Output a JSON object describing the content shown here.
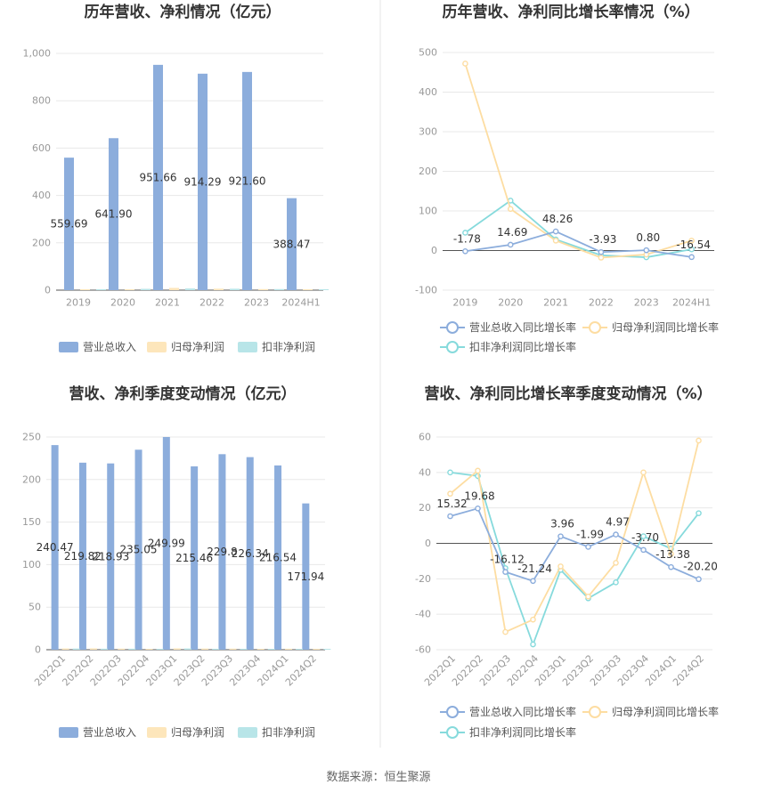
{
  "colors": {
    "series1": "#8CADDC",
    "series2": "#FDE6BB",
    "series3": "#B8E5E8",
    "line1": "#8CADDC",
    "line2": "#FDDDA2",
    "line3": "#86DADC",
    "axis": "#999999",
    "grid": "#E8E8E8",
    "title": "#333333",
    "label": "#333333",
    "divider": "#E5E5E5"
  },
  "source": "数据来源：恒生聚源",
  "chart_data": [
    {
      "id": "annual-revenue",
      "type": "bar",
      "title": "历年营收、净利情况（亿元）",
      "categories": [
        "2019",
        "2020",
        "2021",
        "2022",
        "2023",
        "2024H1"
      ],
      "ylim": [
        0,
        1000
      ],
      "yticks": [
        0,
        200,
        400,
        600,
        800,
        1000
      ],
      "ytick_labels": [
        "0",
        "200",
        "400",
        "600",
        "800",
        "1,000"
      ],
      "grid": true,
      "legend": "bottom",
      "series": [
        {
          "name": "营业总收入",
          "values": [
            559.69,
            641.9,
            951.66,
            914.29,
            921.6,
            388.47
          ],
          "labels": [
            "559.69",
            "641.90",
            "951.66",
            "914.29",
            "921.60",
            "388.47"
          ]
        },
        {
          "name": "归母净利润",
          "values": [
            2.2,
            3.4,
            9.5,
            6.1,
            4.5,
            2.2
          ],
          "labels": []
        },
        {
          "name": "扣非净利润",
          "values": [
            2.4,
            5.5,
            7.0,
            6.0,
            4.6,
            2.1
          ],
          "labels": []
        }
      ]
    },
    {
      "id": "annual-growth",
      "type": "line",
      "title": "历年营收、净利同比增长率情况（%）",
      "categories": [
        "2019",
        "2020",
        "2021",
        "2022",
        "2023",
        "2024H1"
      ],
      "ylim": [
        -100,
        500
      ],
      "yticks": [
        -100,
        0,
        100,
        200,
        300,
        400,
        500
      ],
      "ytick_labels": [
        "-100",
        "0",
        "100",
        "200",
        "300",
        "400",
        "500"
      ],
      "grid": true,
      "legend": "bottom",
      "series": [
        {
          "name": "营业总收入同比增长率",
          "values": [
            -1.78,
            14.69,
            48.26,
            -3.93,
            0.8,
            -16.54
          ],
          "labels": [
            "-1.78",
            "14.69",
            "48.26",
            "-3.93",
            "0.80",
            "-16.54"
          ]
        },
        {
          "name": "归母净利润同比增长率",
          "values": [
            472,
            105,
            25,
            -18,
            -10,
            25
          ],
          "labels": []
        },
        {
          "name": "扣非净利润同比增长率",
          "values": [
            45,
            126,
            28,
            -12,
            -17,
            3
          ],
          "labels": []
        }
      ]
    },
    {
      "id": "quarterly-revenue",
      "type": "bar",
      "title": "营收、净利季度变动情况（亿元）",
      "categories": [
        "2022Q1",
        "2022Q2",
        "2022Q3",
        "2022Q4",
        "2023Q1",
        "2023Q2",
        "2023Q3",
        "2023Q4",
        "2024Q1",
        "2024Q2"
      ],
      "ylim": [
        0,
        250
      ],
      "yticks": [
        0,
        50,
        100,
        150,
        200,
        250
      ],
      "ytick_labels": [
        "0",
        "50",
        "100",
        "150",
        "200",
        "250"
      ],
      "grid": true,
      "legend": "bottom",
      "series": [
        {
          "name": "营业总收入",
          "values": [
            240.47,
            219.82,
            218.93,
            235.05,
            249.99,
            215.46,
            229.8,
            226.34,
            216.54,
            171.94
          ],
          "labels": [
            "240.47",
            "219.82",
            "218.93",
            "235.05",
            "249.99",
            "215.46",
            "229.8",
            "226.34",
            "216.54",
            "171.94"
          ]
        },
        {
          "name": "归母净利润",
          "values": [
            1.5,
            1.6,
            1.3,
            0.8,
            1.6,
            1.4,
            1.3,
            0.9,
            1.2,
            1.1
          ],
          "labels": []
        },
        {
          "name": "扣非净利润",
          "values": [
            1.4,
            1.2,
            1.2,
            0.6,
            1.5,
            1.1,
            1.1,
            0.9,
            1.0,
            1.0
          ],
          "labels": []
        }
      ]
    },
    {
      "id": "quarterly-growth",
      "type": "line",
      "title": "营收、净利同比增长率季度变动情况（%）",
      "categories": [
        "2022Q1",
        "2022Q2",
        "2022Q3",
        "2022Q4",
        "2023Q1",
        "2023Q2",
        "2023Q3",
        "2023Q4",
        "2024Q1",
        "2024Q2"
      ],
      "ylim": [
        -60,
        60
      ],
      "yticks": [
        -60,
        -40,
        -20,
        0,
        20,
        40,
        60
      ],
      "ytick_labels": [
        "-60",
        "-40",
        "-20",
        "0",
        "20",
        "40",
        "60"
      ],
      "grid": true,
      "legend": "bottom",
      "series": [
        {
          "name": "营业总收入同比增长率",
          "values": [
            15.32,
            19.68,
            -16.12,
            -21.24,
            3.96,
            -1.99,
            4.97,
            -3.7,
            -13.38,
            -20.2
          ],
          "labels": [
            "15.32",
            "19.68",
            "-16.12",
            "-21.24",
            "3.96",
            "-1.99",
            "4.97",
            "-3.70",
            "-13.38",
            "-20.20"
          ]
        },
        {
          "name": "归母净利润同比增长率",
          "values": [
            28,
            41,
            -50,
            -43,
            -13,
            -30,
            -11,
            40,
            -6,
            58
          ],
          "labels": []
        },
        {
          "name": "扣非净利润同比增长率",
          "values": [
            40,
            38,
            -14,
            -57,
            -15,
            -31,
            -22,
            4,
            -3,
            17
          ],
          "labels": []
        }
      ]
    }
  ]
}
